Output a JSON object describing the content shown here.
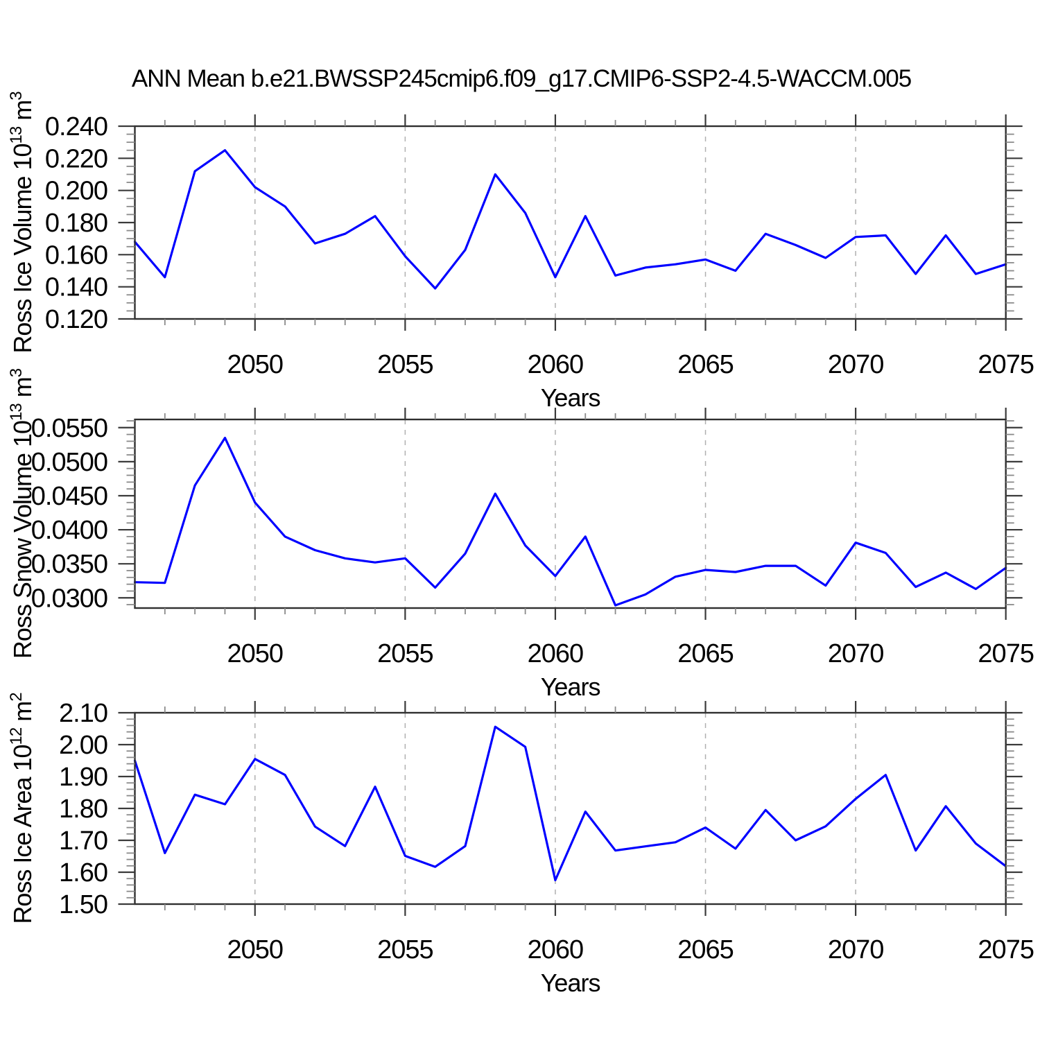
{
  "title": "ANN Mean b.e21.BWSSP245cmip6.f09_g17.CMIP6-SSP2-4.5-WACCM.005",
  "colors": {
    "line": "#0000ff",
    "grid_dashed": "#b0b0b0",
    "frame": "#2f2f2f",
    "major_tick": "#3a3a3a",
    "minor_tick": "#8a8a8a",
    "text": "#000000",
    "background": "#ffffff"
  },
  "chart_data": [
    {
      "type": "line",
      "panel": "top",
      "ylabel_segments": [
        {
          "text": "Ross Ice Volume 10"
        },
        {
          "text": "13",
          "sup": true
        },
        {
          "text": " m"
        },
        {
          "text": "3",
          "sup": true
        }
      ],
      "xlabel": "Years",
      "x": [
        2046,
        2047,
        2048,
        2049,
        2050,
        2051,
        2052,
        2053,
        2054,
        2055,
        2056,
        2057,
        2058,
        2059,
        2060,
        2061,
        2062,
        2063,
        2064,
        2065,
        2066,
        2067,
        2068,
        2069,
        2070,
        2071,
        2072,
        2073,
        2074,
        2075
      ],
      "values": [
        0.168,
        0.146,
        0.212,
        0.225,
        0.202,
        0.19,
        0.167,
        0.173,
        0.184,
        0.159,
        0.139,
        0.163,
        0.21,
        0.186,
        0.146,
        0.184,
        0.147,
        0.152,
        0.154,
        0.157,
        0.15,
        0.173,
        0.166,
        0.158,
        0.171,
        0.172,
        0.148,
        0.172,
        0.148,
        0.154
      ],
      "xlim": [
        2046,
        2075
      ],
      "ylim": [
        0.12,
        0.24
      ],
      "ytick_values": [
        0.24,
        0.22,
        0.2,
        0.18,
        0.16,
        0.14,
        0.12
      ],
      "ytick_labels": [
        "0.240",
        "0.220",
        "0.200",
        "0.180",
        "0.160",
        "0.140",
        "0.120"
      ],
      "y_minor_step": 0.005,
      "xtick_values": [
        2050,
        2055,
        2060,
        2065,
        2070,
        2075
      ],
      "xtick_labels": [
        "2050",
        "2055",
        "2060",
        "2065",
        "2070",
        "2075"
      ],
      "x_minor_step": 1,
      "gridlines_x": [
        2050,
        2055,
        2060,
        2065,
        2070
      ],
      "grid": "vertical-dashed-only",
      "legend": "none"
    },
    {
      "type": "line",
      "panel": "middle",
      "ylabel_segments": [
        {
          "text": "Ross Snow Volume 10"
        },
        {
          "text": "13",
          "sup": true
        },
        {
          "text": " m"
        },
        {
          "text": "3",
          "sup": true
        }
      ],
      "xlabel": "Years",
      "x": [
        2046,
        2047,
        2048,
        2049,
        2050,
        2051,
        2052,
        2053,
        2054,
        2055,
        2056,
        2057,
        2058,
        2059,
        2060,
        2061,
        2062,
        2063,
        2064,
        2065,
        2066,
        2067,
        2068,
        2069,
        2070,
        2071,
        2072,
        2073,
        2074,
        2075
      ],
      "values": [
        0.0323,
        0.0322,
        0.0465,
        0.0535,
        0.044,
        0.039,
        0.037,
        0.0358,
        0.0352,
        0.0358,
        0.0315,
        0.0365,
        0.0453,
        0.0377,
        0.0332,
        0.039,
        0.0289,
        0.0305,
        0.0331,
        0.0341,
        0.0338,
        0.0347,
        0.0347,
        0.0318,
        0.0381,
        0.0366,
        0.0316,
        0.0337,
        0.0313,
        0.0344
      ],
      "xlim": [
        2046,
        2075
      ],
      "ylim": [
        0.0285,
        0.0562
      ],
      "ytick_values": [
        0.055,
        0.05,
        0.045,
        0.04,
        0.035,
        0.03
      ],
      "ytick_labels": [
        "0.0550",
        "0.0500",
        "0.0450",
        "0.0400",
        "0.0350",
        "0.0300"
      ],
      "y_minor_step": 0.001,
      "xtick_values": [
        2050,
        2055,
        2060,
        2065,
        2070,
        2075
      ],
      "xtick_labels": [
        "2050",
        "2055",
        "2060",
        "2065",
        "2070",
        "2075"
      ],
      "x_minor_step": 1,
      "gridlines_x": [
        2050,
        2055,
        2060,
        2065,
        2070
      ],
      "grid": "vertical-dashed-only",
      "legend": "none"
    },
    {
      "type": "line",
      "panel": "bottom",
      "ylabel_segments": [
        {
          "text": "Ross Ice Area 10"
        },
        {
          "text": "12",
          "sup": true
        },
        {
          "text": " m"
        },
        {
          "text": "2",
          "sup": true
        }
      ],
      "xlabel": "Years",
      "x": [
        2046,
        2047,
        2048,
        2049,
        2050,
        2051,
        2052,
        2053,
        2054,
        2055,
        2056,
        2057,
        2058,
        2059,
        2060,
        2061,
        2062,
        2063,
        2064,
        2065,
        2066,
        2067,
        2068,
        2069,
        2070,
        2071,
        2072,
        2073,
        2074,
        2075
      ],
      "values": [
        1.95,
        1.66,
        1.843,
        1.813,
        1.955,
        1.905,
        1.743,
        1.682,
        1.868,
        1.651,
        1.617,
        1.682,
        2.056,
        1.993,
        1.575,
        1.79,
        1.668,
        1.681,
        1.694,
        1.74,
        1.674,
        1.795,
        1.7,
        1.744,
        1.83,
        1.905,
        1.668,
        1.807,
        1.69,
        1.619
      ],
      "xlim": [
        2046,
        2075
      ],
      "ylim": [
        1.5,
        2.1
      ],
      "ytick_values": [
        2.1,
        2.0,
        1.9,
        1.8,
        1.7,
        1.6,
        1.5
      ],
      "ytick_labels": [
        "2.10",
        "2.00",
        "1.90",
        "1.80",
        "1.70",
        "1.60",
        "1.50"
      ],
      "y_minor_step": 0.02,
      "xtick_values": [
        2050,
        2055,
        2060,
        2065,
        2070,
        2075
      ],
      "xtick_labels": [
        "2050",
        "2055",
        "2060",
        "2065",
        "2070",
        "2075"
      ],
      "x_minor_step": 1,
      "gridlines_x": [
        2050,
        2055,
        2060,
        2065,
        2070
      ],
      "grid": "vertical-dashed-only",
      "legend": "none"
    }
  ]
}
